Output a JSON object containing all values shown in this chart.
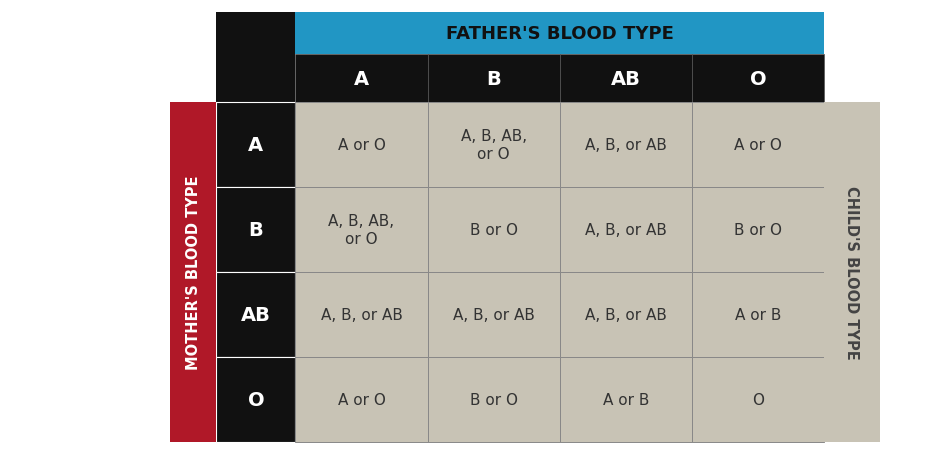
{
  "title": "FATHER'S BLOOD TYPE",
  "left_label": "MOTHER'S BLOOD TYPE",
  "right_label": "CHILD'S BLOOD TYPE",
  "col_headers": [
    "A",
    "B",
    "AB",
    "O"
  ],
  "row_headers": [
    "A",
    "B",
    "AB",
    "O"
  ],
  "cell_data": [
    [
      "A or O",
      "A, B, AB,\nor O",
      "A, B, or AB",
      "A or O"
    ],
    [
      "A, B, AB,\nor O",
      "B or O",
      "A, B, or AB",
      "B or O"
    ],
    [
      "A, B, or AB",
      "A, B, or AB",
      "A, B, or AB",
      "A or B"
    ],
    [
      "A or O",
      "B or O",
      "A or B",
      "O"
    ]
  ],
  "title_bg": "#2196C4",
  "title_fg": "#111111",
  "col_header_bg": "#111111",
  "col_header_fg": "#ffffff",
  "row_header_bg": "#111111",
  "row_header_fg": "#ffffff",
  "cell_bg": "#C8C3B5",
  "cell_fg": "#333333",
  "left_bar_bg": "#B01828",
  "left_bar_fg": "#ffffff",
  "right_bar_bg": "#C8C3B5",
  "right_bar_fg": "#444444",
  "grid_color": "#888888",
  "background": "#ffffff"
}
